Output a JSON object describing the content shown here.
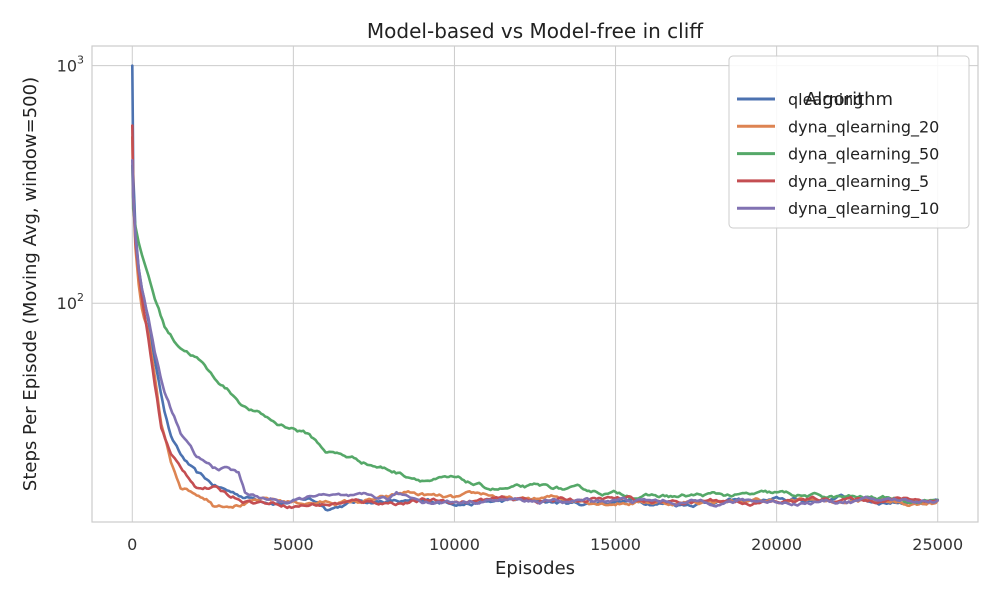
{
  "chart_data": {
    "type": "line",
    "title": "Model-based vs Model-free in cliff",
    "xlabel": "Episodes",
    "ylabel": "Steps Per Episode (Moving Avg, window=500)",
    "yscale": "log",
    "xlim": [
      -1250,
      26250
    ],
    "ylim": [
      12,
      1210
    ],
    "x_ticks": [
      0,
      5000,
      10000,
      15000,
      20000,
      25000
    ],
    "y_ticks": [
      {
        "value": 100,
        "base": "10",
        "exp": "2"
      },
      {
        "value": 1000,
        "base": "10",
        "exp": "3"
      }
    ],
    "grid": true,
    "legend": {
      "title": "Algorithm",
      "placement": "top-right"
    },
    "series": [
      {
        "name": "qlearning",
        "color": "#4c72b0",
        "points": [
          [
            0,
            1000
          ],
          [
            30,
            350
          ],
          [
            100,
            200
          ],
          [
            200,
            140
          ],
          [
            300,
            115
          ],
          [
            500,
            85
          ],
          [
            700,
            57
          ],
          [
            1000,
            36
          ],
          [
            1200,
            28
          ],
          [
            1500,
            23
          ],
          [
            2000,
            19
          ],
          [
            2500,
            17
          ],
          [
            3000,
            16
          ],
          [
            3500,
            15.3
          ],
          [
            4000,
            15
          ],
          [
            4500,
            14.8
          ],
          [
            5000,
            14.8
          ],
          [
            5500,
            15
          ],
          [
            5800,
            14.5
          ],
          [
            6000,
            13.8
          ],
          [
            6500,
            14.3
          ],
          [
            7000,
            14.7
          ],
          [
            8000,
            14.8
          ],
          [
            9000,
            14.3
          ],
          [
            10000,
            14.6
          ],
          [
            11000,
            14.6
          ],
          [
            12000,
            14.7
          ],
          [
            13000,
            14.5
          ],
          [
            14000,
            14.3
          ],
          [
            15000,
            14.8
          ],
          [
            16000,
            14.7
          ],
          [
            17000,
            14.4
          ],
          [
            18000,
            14.8
          ],
          [
            19000,
            14.7
          ],
          [
            20000,
            14.7
          ],
          [
            21000,
            14.7
          ],
          [
            22000,
            15.3
          ],
          [
            23000,
            14.7
          ],
          [
            24000,
            14.8
          ],
          [
            25000,
            14.8
          ]
        ]
      },
      {
        "name": "dyna_qlearning_20",
        "color": "#dd8452",
        "points": [
          [
            0,
            500
          ],
          [
            30,
            280
          ],
          [
            100,
            170
          ],
          [
            200,
            120
          ],
          [
            300,
            95
          ],
          [
            500,
            72
          ],
          [
            700,
            48
          ],
          [
            900,
            30
          ],
          [
            1200,
            21
          ],
          [
            1500,
            17
          ],
          [
            2000,
            16
          ],
          [
            2300,
            15.5
          ],
          [
            2500,
            14.5
          ],
          [
            3000,
            14.7
          ],
          [
            4000,
            14.8
          ],
          [
            5000,
            14.5
          ],
          [
            6000,
            14.5
          ],
          [
            7000,
            14.6
          ],
          [
            8000,
            15
          ],
          [
            8500,
            15.8
          ],
          [
            9000,
            15.5
          ],
          [
            10000,
            14.8
          ],
          [
            11000,
            15.4
          ],
          [
            12000,
            14.6
          ],
          [
            13000,
            15
          ],
          [
            14000,
            14.8
          ],
          [
            15000,
            14.8
          ],
          [
            16000,
            14.8
          ],
          [
            17000,
            14.5
          ],
          [
            18000,
            14.8
          ],
          [
            19000,
            14.7
          ],
          [
            20000,
            14.6
          ],
          [
            21000,
            14.7
          ],
          [
            22000,
            14.5
          ],
          [
            23000,
            14.8
          ],
          [
            24000,
            14.3
          ],
          [
            25000,
            14.8
          ]
        ]
      },
      {
        "name": "dyna_qlearning_50",
        "color": "#55a868",
        "points": [
          [
            0,
            380
          ],
          [
            30,
            250
          ],
          [
            100,
            210
          ],
          [
            200,
            180
          ],
          [
            300,
            160
          ],
          [
            500,
            130
          ],
          [
            700,
            105
          ],
          [
            1000,
            80
          ],
          [
            1300,
            70
          ],
          [
            1500,
            66
          ],
          [
            2000,
            60
          ],
          [
            2500,
            49
          ],
          [
            3000,
            43
          ],
          [
            3500,
            37
          ],
          [
            4000,
            34
          ],
          [
            4500,
            31
          ],
          [
            5000,
            30
          ],
          [
            5500,
            28
          ],
          [
            6000,
            24
          ],
          [
            7000,
            22
          ],
          [
            8000,
            20
          ],
          [
            8500,
            19
          ],
          [
            9000,
            18.5
          ],
          [
            10000,
            18
          ],
          [
            11000,
            16.5
          ],
          [
            12000,
            16.5
          ],
          [
            13000,
            16.5
          ],
          [
            14000,
            16
          ],
          [
            15000,
            15.8
          ],
          [
            16000,
            15.5
          ],
          [
            17000,
            15.3
          ],
          [
            18000,
            15.5
          ],
          [
            19000,
            15.4
          ],
          [
            20000,
            15.5
          ],
          [
            21000,
            15.3
          ],
          [
            22000,
            15.1
          ],
          [
            23000,
            15
          ],
          [
            24000,
            15
          ],
          [
            25000,
            14.9
          ]
        ]
      },
      {
        "name": "dyna_qlearning_5",
        "color": "#c44e52",
        "points": [
          [
            0,
            560
          ],
          [
            30,
            280
          ],
          [
            100,
            180
          ],
          [
            200,
            135
          ],
          [
            300,
            105
          ],
          [
            500,
            70
          ],
          [
            700,
            45
          ],
          [
            900,
            30
          ],
          [
            1200,
            23
          ],
          [
            1500,
            20
          ],
          [
            2000,
            17
          ],
          [
            2500,
            16.8
          ],
          [
            3000,
            15.5
          ],
          [
            3500,
            15
          ],
          [
            4000,
            14.7
          ],
          [
            4500,
            14.5
          ],
          [
            5000,
            14.3
          ],
          [
            6000,
            14.4
          ],
          [
            7000,
            14.6
          ],
          [
            8000,
            14.6
          ],
          [
            9000,
            14.7
          ],
          [
            10000,
            14.7
          ],
          [
            11000,
            14.8
          ],
          [
            12000,
            14.8
          ],
          [
            13000,
            14.8
          ],
          [
            14000,
            14.9
          ],
          [
            15000,
            14.9
          ],
          [
            16000,
            14.6
          ],
          [
            17000,
            14.5
          ],
          [
            18000,
            14.8
          ],
          [
            19000,
            14.7
          ],
          [
            20000,
            14.5
          ],
          [
            21000,
            14.8
          ],
          [
            22000,
            15
          ],
          [
            23000,
            14.8
          ],
          [
            23500,
            15.3
          ],
          [
            24000,
            15.1
          ],
          [
            25000,
            14.8
          ]
        ]
      },
      {
        "name": "dyna_qlearning_10",
        "color": "#8172b2",
        "points": [
          [
            0,
            400
          ],
          [
            30,
            280
          ],
          [
            100,
            190
          ],
          [
            200,
            140
          ],
          [
            300,
            115
          ],
          [
            500,
            88
          ],
          [
            700,
            62
          ],
          [
            1000,
            42
          ],
          [
            1300,
            33
          ],
          [
            1500,
            28
          ],
          [
            2000,
            22
          ],
          [
            2500,
            20
          ],
          [
            3000,
            20
          ],
          [
            3300,
            19
          ],
          [
            3500,
            16
          ],
          [
            4000,
            15
          ],
          [
            5000,
            14.6
          ],
          [
            5500,
            15
          ],
          [
            5800,
            15.8
          ],
          [
            6000,
            15.4
          ],
          [
            7000,
            14.8
          ],
          [
            8000,
            14.8
          ],
          [
            8200,
            15.5
          ],
          [
            9000,
            14.8
          ],
          [
            10000,
            14.6
          ],
          [
            11000,
            15
          ],
          [
            12000,
            14.8
          ],
          [
            13000,
            14.6
          ],
          [
            14000,
            14.7
          ],
          [
            15000,
            15
          ],
          [
            16000,
            14.7
          ],
          [
            17000,
            14.5
          ],
          [
            18000,
            14.7
          ],
          [
            19000,
            14.8
          ],
          [
            20000,
            14.6
          ],
          [
            21000,
            14.7
          ],
          [
            22000,
            14.8
          ],
          [
            23000,
            14.7
          ],
          [
            24000,
            14.8
          ],
          [
            25000,
            14.8
          ]
        ]
      }
    ]
  }
}
